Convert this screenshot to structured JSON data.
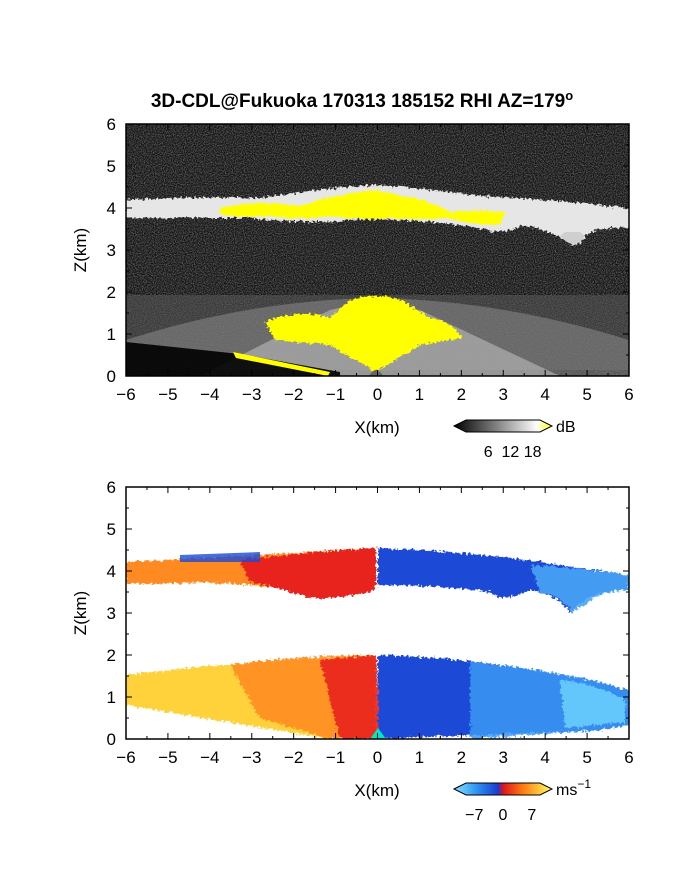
{
  "title_main": "3D-CDL@Fukuoka 170313 185152 RHI AZ=179",
  "title_sup": "o",
  "chart_data": [
    {
      "type": "heatmap",
      "name": "backscatter",
      "xlabel": "X(km)",
      "ylabel": "Z(km)",
      "xlim": [
        -6,
        6
      ],
      "ylim": [
        0,
        6
      ],
      "xticks": [
        "−6",
        "−5",
        "−4",
        "−3",
        "−2",
        "−1",
        "0",
        "1",
        "2",
        "3",
        "4",
        "5",
        "6"
      ],
      "yticks": [
        "0",
        "1",
        "2",
        "3",
        "4",
        "5",
        "6"
      ],
      "colorbar": {
        "unit": "dB",
        "ticks": [
          "6",
          "12",
          "18"
        ],
        "range": [
          0,
          20
        ]
      },
      "colors": {
        "low": "#000000",
        "high": "#ffffff",
        "saturated": "#ffff00"
      },
      "features": {
        "cloud_layer_base_km": 3.6,
        "cloud_layer_top_km": 4.3,
        "boundary_layer_top_km": 2.0
      }
    },
    {
      "type": "heatmap",
      "name": "doppler_velocity",
      "xlabel": "X(km)",
      "ylabel": "Z(km)",
      "xlim": [
        -6,
        6
      ],
      "ylim": [
        0,
        6
      ],
      "xticks": [
        "−6",
        "−5",
        "−4",
        "−3",
        "−2",
        "−1",
        "0",
        "1",
        "2",
        "3",
        "4",
        "5",
        "6"
      ],
      "yticks": [
        "0",
        "1",
        "2",
        "3",
        "4",
        "5",
        "6"
      ],
      "colorbar": {
        "unit": "ms",
        "unit_sup": "−1",
        "ticks": [
          "−7",
          "0",
          "7"
        ],
        "range": [
          -9,
          9
        ]
      },
      "colors": {
        "negative": "#1e5ad2",
        "zero": "#dc141e",
        "positive": "#ffe650"
      },
      "features": {
        "cloud_layer_base_km": 3.6,
        "cloud_layer_top_km": 4.3,
        "boundary_layer_top_km": 2.0
      }
    }
  ]
}
